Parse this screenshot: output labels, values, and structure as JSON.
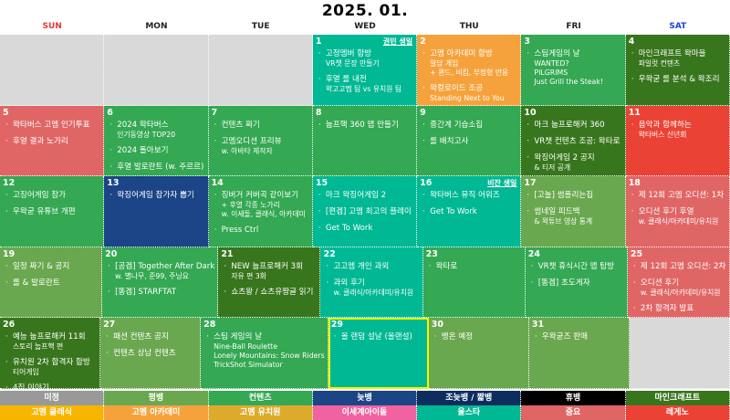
{
  "title": "2025. 01.",
  "weekdays": [
    {
      "label": "SUN",
      "color": "#e53935"
    },
    {
      "label": "MON",
      "color": "#222"
    },
    {
      "label": "TUE",
      "color": "#222"
    },
    {
      "label": "WED",
      "color": "#222"
    },
    {
      "label": "THU",
      "color": "#222"
    },
    {
      "label": "FRI",
      "color": "#222"
    },
    {
      "label": "SAT",
      "color": "#1a47c8"
    }
  ],
  "weeks": [
    [
      {
        "color": "#d9d9d9"
      },
      {
        "color": "#d9d9d9"
      },
      {
        "color": "#d9d9d9"
      },
      {
        "num": "1",
        "color": "#00b894",
        "note": "권민 생일",
        "items": [
          {
            "t": "고정멤버 합방",
            "sub": [
              "VR챗 문장 만들기"
            ]
          },
          {
            "t": "후열 롤 내전",
            "sub": [
              "왁고고멤 팀 vs 유치원 팀"
            ]
          }
        ]
      },
      {
        "num": "2",
        "color": "#f6a23c",
        "items": [
          {
            "t": "고멤 아카데미 합방",
            "sub": [
              "알담 게임",
              "+ 퀸드, 비킴, 부정형 반응"
            ]
          },
          {
            "t": "왁컬로이드 조공",
            "sub": [
              "Standing Next to You"
            ]
          }
        ]
      },
      {
        "num": "3",
        "color": "#34a853",
        "items": [
          {
            "t": "스팀게임의 날",
            "sub": [
              "WANTED?",
              "PILGRIMS",
              "Just Grill the Steak!"
            ]
          }
        ]
      },
      {
        "num": "4",
        "color": "#38761d",
        "items": [
          {
            "t": "마인크래프트 왁마을",
            "sub": [
              "파일럿 컨텐츠"
            ]
          },
          {
            "t": "우왁굳 롤 분석 & 왁조리"
          }
        ]
      }
    ],
    [
      {
        "num": "5",
        "color": "#e06666",
        "items": [
          {
            "t": "왁타버스 고멤 인기투표"
          },
          {
            "t": "후열 결과 노가리"
          }
        ]
      },
      {
        "num": "6",
        "color": "#34a853",
        "items": [
          {
            "t": "2024 왁타버스",
            "sub": [
              "인기동영상 TOP20"
            ]
          },
          {
            "t": "2024 돌아보기"
          },
          {
            "t": "후열 발로란트 (w. 주르르)"
          }
        ]
      },
      {
        "num": "7",
        "color": "#34a853",
        "items": [
          {
            "t": "컨텐츠 짜기"
          },
          {
            "t": "고멤오디션 프리뷰",
            "sub": [
              "w. 아바타 제작자"
            ]
          }
        ]
      },
      {
        "num": "8",
        "color": "#34a853",
        "items": [
          {
            "t": "눕프핵 360 맵 만들기"
          }
        ]
      },
      {
        "num": "9",
        "color": "#34a853",
        "items": [
          {
            "t": "중간계 기습소집"
          },
          {
            "t": "롤 배치고사"
          }
        ]
      },
      {
        "num": "10",
        "color": "#38761d",
        "items": [
          {
            "t": "마크 눕프로해커 360"
          },
          {
            "t": "VR챗 컨텐츠 조공: 왁타로"
          },
          {
            "t": "왁징어게임 2 공지",
            "sub": [
              "& 티저 공개"
            ]
          }
        ]
      },
      {
        "num": "11",
        "color": "#ea4335",
        "items": [
          {
            "t": "음악과 함께하는",
            "sub": [
              "왁타버스 신년회"
            ]
          }
        ]
      }
    ],
    [
      {
        "num": "12",
        "color": "#34a853",
        "items": [
          {
            "t": "고징어게임 참가"
          },
          {
            "t": "우왁굳 유튜브 개편"
          }
        ]
      },
      {
        "num": "13",
        "color": "#1c4587",
        "items": [
          {
            "t": "왁징어게임 참가자 뽑기"
          }
        ]
      },
      {
        "num": "14",
        "color": "#34a853",
        "items": [
          {
            "t": "징버거 커버곡 같이보기",
            "sub": [
              "+ 후열 각종 노가리",
              "w. 이세돌, 클래식, 아카데미"
            ]
          },
          {
            "t": "Press Ctrl"
          }
        ]
      },
      {
        "num": "15",
        "color": "#00b894",
        "items": [
          {
            "t": "마크 왁징어게임 2"
          },
          {
            "t": "[편겜] 고멤 최고의 플레이"
          },
          {
            "t": "Get To Work"
          }
        ]
      },
      {
        "num": "16",
        "color": "#00b894",
        "note": "비잔 생일",
        "items": [
          {
            "t": "왁타버스 뮤직 어워즈"
          },
          {
            "t": "Get To Work"
          }
        ]
      },
      {
        "num": "17",
        "color": "#6aa84f",
        "items": [
          {
            "t": "[고놀] 썸플리는집"
          },
          {
            "t": "썸네일 피드백",
            "sub": [
              "& 왁튜브 영상 통계"
            ]
          }
        ]
      },
      {
        "num": "18",
        "color": "#e06666",
        "items": [
          {
            "t": "제 12회 고멤 오디션: 1차"
          },
          {
            "t": "오디션 후기 후열",
            "sub": [
              "w. 클래식/아카데미/유치원"
            ]
          }
        ]
      }
    ],
    [
      {
        "num": "19",
        "color": "#6aa84f",
        "items": [
          {
            "t": "일정 짜기 & 공지"
          },
          {
            "t": "롤 & 발로란트"
          }
        ]
      },
      {
        "num": "20",
        "color": "#34a853",
        "items": [
          {
            "t": "[공겜] Together After Dark",
            "sub": [
              "w. 별나무, 준99, 주닝요"
            ]
          },
          {
            "t": "[똥겜] STARFTAT"
          }
        ]
      },
      {
        "num": "21",
        "color": "#38761d",
        "items": [
          {
            "t": "NEW 눕프로해커 3회",
            "sub": [
              "자유 편 3화"
            ]
          },
          {
            "t": "쇼츠왕 / 쇼츠유짱글 읽기"
          }
        ]
      },
      {
        "num": "22",
        "color": "#00b894",
        "items": [
          {
            "t": "고고멤 개인 과외"
          },
          {
            "t": "과외 후기",
            "sub": [
              "w. 클래식/아카데미/유치원"
            ]
          }
        ]
      },
      {
        "num": "23",
        "color": "#34a853",
        "items": [
          {
            "t": "왁타로"
          }
        ]
      },
      {
        "num": "24",
        "color": "#34a853",
        "items": [
          {
            "t": "VR챗 휴식시간 맵 탐방"
          },
          {
            "t": "[똥겜] 초도게자"
          }
        ]
      },
      {
        "num": "25",
        "color": "#e06666",
        "items": [
          {
            "t": "제 12회 고멤 오디션: 2차"
          },
          {
            "t": "오디션 후기",
            "sub": [
              "w. 클래식/아카데미/유치원"
            ]
          },
          {
            "t": "2차 합격자 발표"
          }
        ]
      }
    ],
    [
      {
        "num": "26",
        "color": "#38761d",
        "items": [
          {
            "t": "예능 눕프로해커 11회",
            "sub": [
              "스토리 눕프핵 편"
            ]
          },
          {
            "t": "유치원 2차 합격자 합방",
            "sub": [
              "티어게임"
            ]
          },
          {
            "t": "4집 이야기"
          }
        ]
      },
      {
        "num": "27",
        "color": "#6aa84f",
        "items": [
          {
            "t": "패션 컨텐츠 공지"
          },
          {
            "t": "컨텐츠 상남 컨텐츠"
          }
        ]
      },
      {
        "num": "28",
        "color": "#34a853",
        "items": [
          {
            "t": "스팀 게임의 날",
            "sub": [
              "Nine-Ball Roulette",
              "Lonely Mountains: Snow Riders",
              "TrickShot Simulator"
            ]
          }
        ]
      },
      {
        "num": "29",
        "color": "#00b894",
        "selected": true,
        "items": [
          {
            "t": "올 랜덤 설날 (올랜설)"
          }
        ]
      },
      {
        "num": "30",
        "color": "#6aa84f",
        "items": [
          {
            "t": "뱅온 예정"
          }
        ]
      },
      {
        "num": "31",
        "color": "#6aa84f",
        "items": [
          {
            "t": "우왁굳즈 판매"
          }
        ]
      },
      {
        "color": "#d9d9d9"
      }
    ]
  ],
  "legend_row1": [
    {
      "label": "미정",
      "color": "#999999"
    },
    {
      "label": "평뱅",
      "color": "#6aa84f"
    },
    {
      "label": "컨텐츠",
      "color": "#34a853"
    },
    {
      "label": "늦뱅",
      "color": "#1c4587"
    },
    {
      "label": "조늦뱅 / 짧뱅",
      "color": "#0c2d5e"
    },
    {
      "label": "휴뱅",
      "color": "#000000"
    },
    {
      "label": "마인크래프트",
      "color": "#38761d"
    }
  ],
  "legend_row2": [
    {
      "label": "고멤 클래식",
      "color": "#f7b500"
    },
    {
      "label": "고멤 아카데미",
      "color": "#f6a23c"
    },
    {
      "label": "고멤 유치원",
      "color": "#dcab2c"
    },
    {
      "label": "이세계아이돌",
      "color": "#f062a0"
    },
    {
      "label": "울스타",
      "color": "#00b894"
    },
    {
      "label": "중요",
      "color": "#e06666"
    },
    {
      "label": "레게노",
      "color": "#ea4335"
    }
  ]
}
